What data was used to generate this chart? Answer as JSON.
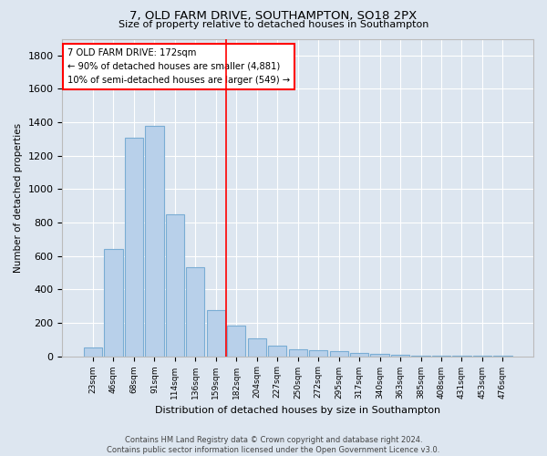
{
  "title1": "7, OLD FARM DRIVE, SOUTHAMPTON, SO18 2PX",
  "title2": "Size of property relative to detached houses in Southampton",
  "xlabel": "Distribution of detached houses by size in Southampton",
  "ylabel": "Number of detached properties",
  "categories": [
    "23sqm",
    "46sqm",
    "68sqm",
    "91sqm",
    "114sqm",
    "136sqm",
    "159sqm",
    "182sqm",
    "204sqm",
    "227sqm",
    "250sqm",
    "272sqm",
    "295sqm",
    "317sqm",
    "340sqm",
    "363sqm",
    "385sqm",
    "408sqm",
    "431sqm",
    "453sqm",
    "476sqm"
  ],
  "values": [
    50,
    640,
    1310,
    1380,
    850,
    530,
    275,
    185,
    105,
    65,
    40,
    37,
    30,
    20,
    15,
    8,
    5,
    5,
    3,
    2,
    2
  ],
  "bar_color": "#b8d0ea",
  "bar_edge_color": "#7aadd4",
  "background_color": "#dde6f0",
  "grid_color": "#ffffff",
  "annotation_text1": "7 OLD FARM DRIVE: 172sqm",
  "annotation_text2": "← 90% of detached houses are smaller (4,881)",
  "annotation_text3": "10% of semi-detached houses are larger (549) →",
  "ylim": [
    0,
    1900
  ],
  "yticks": [
    0,
    200,
    400,
    600,
    800,
    1000,
    1200,
    1400,
    1600,
    1800
  ],
  "property_line_idx": 7,
  "footer1": "Contains HM Land Registry data © Crown copyright and database right 2024.",
  "footer2": "Contains public sector information licensed under the Open Government Licence v3.0."
}
